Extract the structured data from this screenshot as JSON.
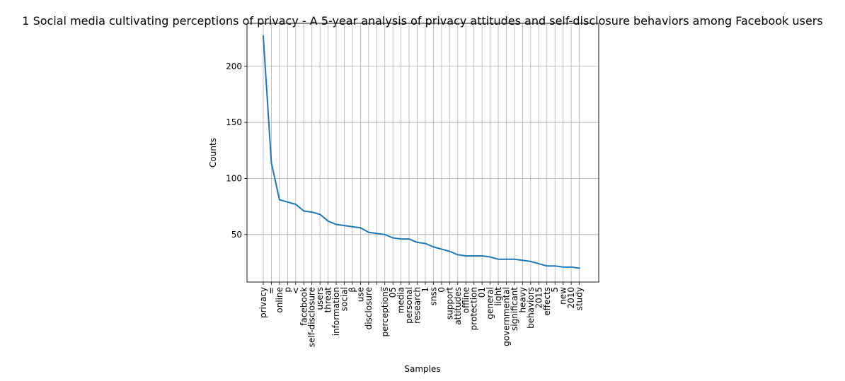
{
  "chart_data": {
    "type": "line",
    "title": "1 Social media cultivating perceptions of privacy - A 5-year analysis of privacy attitudes and self-disclosure behaviors among Facebook users",
    "xlabel": "Samples",
    "ylabel": "Counts",
    "categories": [
      "privacy",
      "=",
      "online",
      "p",
      "<",
      "facebook",
      "self-disclosure",
      "users",
      "threat",
      "information",
      "social",
      "β",
      "use",
      "disclosure",
      "_",
      "perceptions",
      "05",
      "media",
      "personal",
      "research",
      "1",
      "snss",
      "0",
      "support",
      "attitudes",
      "offline",
      "protection",
      "01",
      "general",
      "light",
      "governmental",
      "significant",
      "heavy",
      "behaviors",
      "2015",
      "effects",
      "5",
      "new",
      "2010",
      "study"
    ],
    "series": [
      {
        "values": [
          227,
          114,
          81,
          79,
          77,
          71,
          70,
          68,
          62,
          59,
          58,
          57,
          56,
          52,
          51,
          50,
          47,
          46,
          46,
          43,
          42,
          39,
          37,
          35,
          32,
          31,
          31,
          31,
          30,
          28,
          28,
          28,
          27,
          26,
          24,
          22,
          22,
          21,
          21,
          20
        ],
        "color": "#1f77b4"
      }
    ],
    "yticks": [
      50,
      100,
      150,
      200
    ],
    "ylim": [
      7.65,
      238.35
    ],
    "grid": true,
    "legend": "none"
  }
}
